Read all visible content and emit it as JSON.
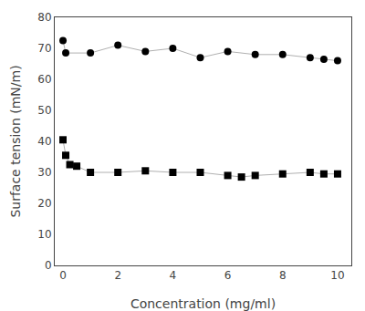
{
  "chart_data": {
    "type": "line",
    "xlabel": "Concentration (mg/ml)",
    "ylabel": "Surface tension (mN/m)",
    "color": "#b0b0b0",
    "series": [
      {
        "x": [
          0.0,
          0.1,
          1.0,
          2.0,
          3.0,
          4.0,
          5.0,
          6.0,
          7.0,
          8.0,
          9.0,
          9.5,
          10.0
        ],
        "values": [
          72.5,
          68.5,
          68.5,
          71.0,
          69.0,
          70.0,
          67.0,
          69.0,
          68.0,
          68.0,
          67.0,
          66.5,
          66.0
        ],
        "marker": "circle",
        "color": "black"
      },
      {
        "x": [
          0.0,
          0.1,
          0.25,
          0.5,
          1.0,
          2.0,
          3.0,
          4.0,
          5.0,
          6.0,
          6.5,
          7.0,
          8.0,
          9.0,
          9.5,
          10.0
        ],
        "values": [
          40.5,
          35.5,
          32.5,
          32.0,
          30.0,
          30.0,
          30.5,
          30.0,
          30.0,
          29.0,
          28.5,
          29.0,
          29.5,
          30.0,
          29.5,
          29.5
        ],
        "marker": "square",
        "color": "black"
      }
    ],
    "xlim": [
      -0.3,
      10.5
    ],
    "ylim": [
      0,
      80
    ],
    "xticks": [
      0,
      2,
      4,
      6,
      8,
      10
    ],
    "yticks": [
      0,
      10,
      20,
      30,
      40,
      50,
      60,
      70,
      80
    ],
    "grid": false
  }
}
